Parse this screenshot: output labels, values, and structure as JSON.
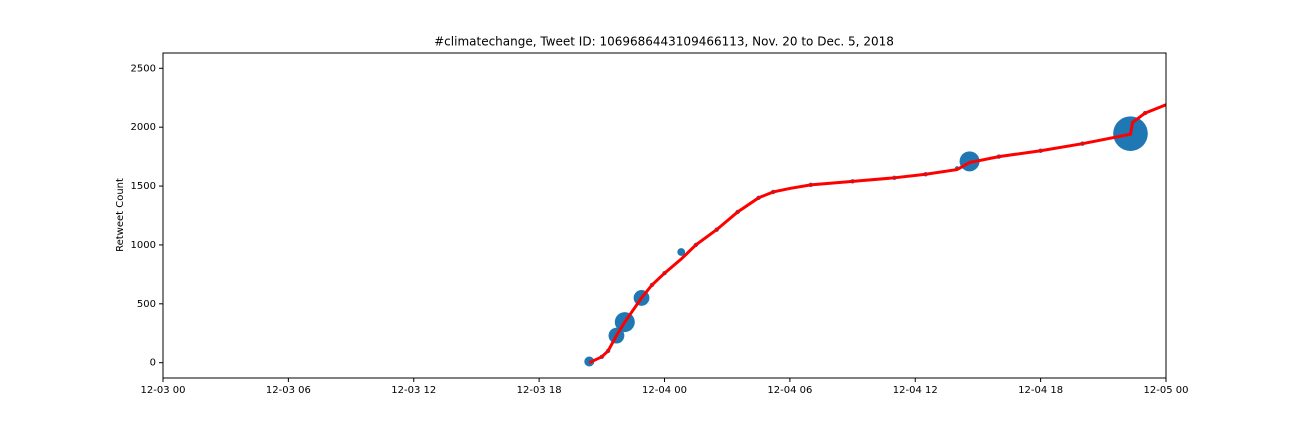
{
  "chart_data": {
    "type": "scatter",
    "title": "#climatechange, Tweet ID: 1069686443109466113, Nov. 20 to Dec. 5, 2018",
    "ylabel": "Retweet Count",
    "xlim": [
      0,
      48
    ],
    "xticks": [
      {
        "value": 0,
        "label": "12-03 00"
      },
      {
        "value": 6,
        "label": "12-03 06"
      },
      {
        "value": 12,
        "label": "12-03 12"
      },
      {
        "value": 18,
        "label": "12-03 18"
      },
      {
        "value": 24,
        "label": "12-04 00"
      },
      {
        "value": 30,
        "label": "12-04 06"
      },
      {
        "value": 36,
        "label": "12-04 12"
      },
      {
        "value": 42,
        "label": "12-04 18"
      },
      {
        "value": 48,
        "label": "12-05 00"
      }
    ],
    "ylim": [
      -130,
      2630
    ],
    "yticks": [
      0,
      500,
      1000,
      1500,
      2000,
      2500
    ],
    "series": [
      {
        "kind": "scatter",
        "color": "#1f77b4",
        "x": [
          20.4,
          21.0,
          21.3,
          21.7,
          22.1,
          22.9,
          23.4,
          24.0,
          24.8,
          25.5,
          26.5,
          27.5,
          28.5,
          29.2,
          31.0,
          33.0,
          35.0,
          36.5,
          38.0,
          38.6,
          40.0,
          42.0,
          44.0,
          46.3,
          47.0
        ],
        "values": [
          10,
          50,
          100,
          230,
          345,
          550,
          660,
          760,
          940,
          1000,
          1130,
          1280,
          1400,
          1450,
          1510,
          1540,
          1570,
          1600,
          1650,
          1710,
          1750,
          1800,
          1860,
          1945,
          2120
        ],
        "sizes": [
          100,
          20,
          20,
          250,
          400,
          250,
          20,
          20,
          60,
          20,
          20,
          20,
          20,
          20,
          20,
          20,
          20,
          20,
          20,
          400,
          20,
          20,
          20,
          1200,
          20
        ]
      },
      {
        "kind": "line",
        "color": "#ff0000",
        "x": [
          20.4,
          21.0,
          21.3,
          21.7,
          22.1,
          22.9,
          23.4,
          24.0,
          24.8,
          25.5,
          26.5,
          27.5,
          28.5,
          29.2,
          30.0,
          31.0,
          33.0,
          35.0,
          36.5,
          38.0,
          38.6,
          40.0,
          42.0,
          44.0,
          46.3,
          46.4,
          47.0,
          48.0
        ],
        "values": [
          0,
          50,
          100,
          230,
          345,
          550,
          660,
          760,
          880,
          1000,
          1130,
          1280,
          1400,
          1450,
          1480,
          1510,
          1540,
          1570,
          1600,
          1640,
          1700,
          1750,
          1800,
          1860,
          1940,
          2040,
          2120,
          2190
        ]
      }
    ]
  }
}
